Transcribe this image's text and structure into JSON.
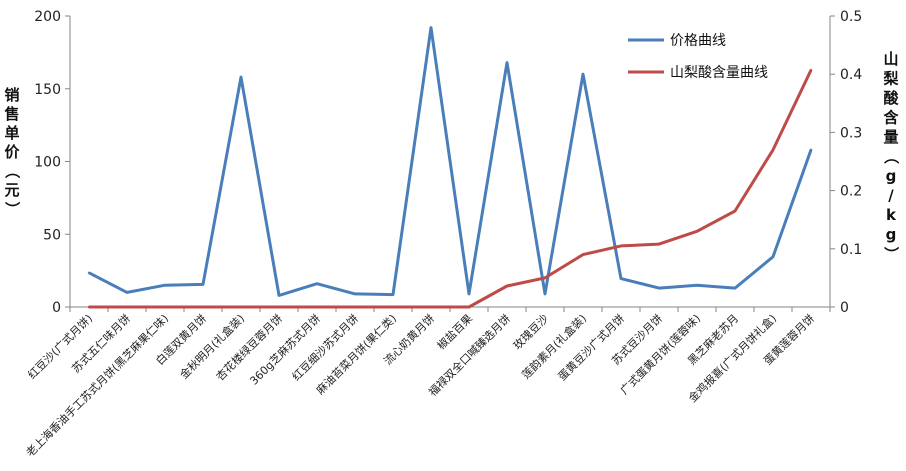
{
  "chart_data": {
    "type": "line",
    "title": "",
    "ylabel_left": "销售单价（元）",
    "ylabel_right": "山梨酸含量（g/kg）",
    "yleft_ticks": [
      "0",
      "50",
      "100",
      "150",
      "200"
    ],
    "yright_ticks": [
      "0",
      "0.1",
      "0.2",
      "0.3",
      "0.4",
      "0.5"
    ],
    "yleft_lim": [
      0,
      200
    ],
    "yright_lim": [
      0,
      0.5
    ],
    "grid": false,
    "legend_position": "top-right",
    "categories": [
      "红豆沙(广式月饼)",
      "苏式五仁味月饼",
      "老上海香油手工苏式月饼(黑芝麻果仁味)",
      "白莲双黄月饼",
      "金秋明月(礼盒装)",
      "杏花楼绿豆蓉月饼",
      "360g芝麻苏式月饼",
      "红豆细沙苏式月饼",
      "麻油苔菜月饼(果仁类)",
      "流心奶黄月饼",
      "椒盐百果",
      "福禄双全口喊臻选月饼",
      "玫瑰豆沙",
      "莲韵素月(礼盒装)",
      "蛋黄豆沙广式月饼",
      "苏式豆沙月饼",
      "广式蛋黄月饼(莲蓉味)",
      "黑芝麻老苏月",
      "金鸡报喜(广式月饼礼盒)",
      "蛋黄莲蓉月饼"
    ],
    "series": [
      {
        "name": "价格曲线",
        "axis": "left",
        "color": "#4a7ebb",
        "values": [
          23.5,
          10,
          15,
          15.5,
          158,
          8,
          16,
          9,
          8.5,
          192,
          9,
          168,
          9,
          160,
          19.5,
          13,
          15,
          13,
          34.5,
          108
        ]
      },
      {
        "name": "山梨酸含量曲线",
        "axis": "right",
        "color": "#be4b48",
        "values": [
          0,
          0,
          0,
          0,
          0,
          0,
          0,
          0,
          0,
          0,
          0,
          0.036,
          0.05,
          0.09,
          0.105,
          0.108,
          0.13,
          0.165,
          0.27,
          0.407
        ]
      }
    ]
  }
}
